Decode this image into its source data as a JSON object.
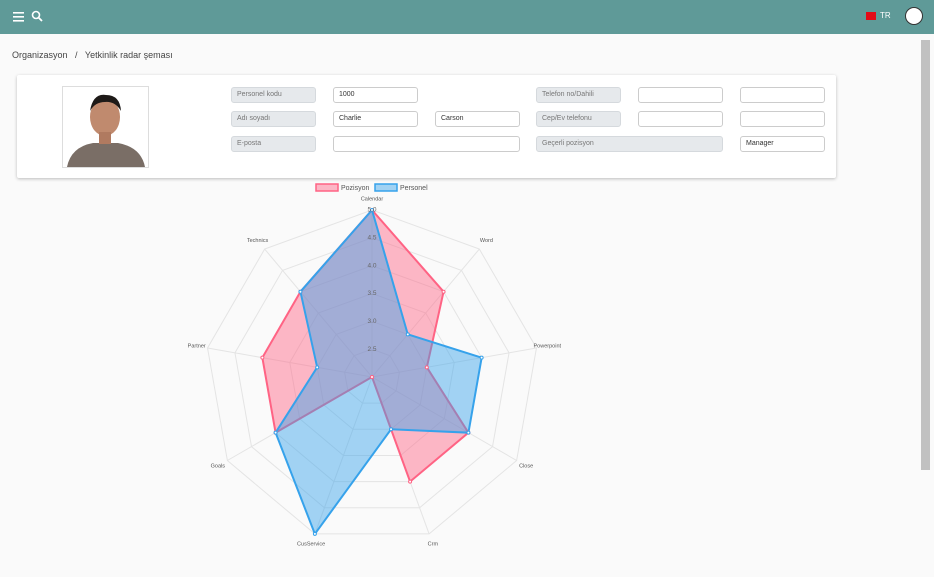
{
  "header": {
    "language": "TR"
  },
  "breadcrumb": {
    "items": [
      "Organizasyon",
      "Yetkinlik radar şeması"
    ]
  },
  "form": {
    "personnel_code": {
      "label": "Personel kodu",
      "value": "1000"
    },
    "full_name": {
      "label": "Adı soyadı",
      "first": "Charlie",
      "last": "Carson"
    },
    "email": {
      "label": "E-posta"
    },
    "phone": {
      "label": "Telefon no/Dahili"
    },
    "mobile": {
      "label": "Cep/Ev telefonu"
    },
    "position": {
      "label": "Geçerli pozisyon",
      "value": "Manager"
    }
  },
  "chart_data": {
    "type": "radar",
    "categories": [
      "Calendar",
      "Word",
      "Powerpoint",
      "Close",
      "Crm",
      "CusService",
      "Goals",
      "Partner",
      "Technics"
    ],
    "series": [
      {
        "name": "Pozisyon",
        "color": "#ff6384",
        "values": [
          5,
          4,
          3,
          4,
          4,
          2,
          4,
          4,
          4
        ]
      },
      {
        "name": "Personel",
        "color": "#36a2eb",
        "values": [
          5,
          3,
          4,
          4,
          3,
          5,
          4,
          3,
          4
        ]
      }
    ],
    "rlim": [
      2,
      5
    ],
    "rticks": [
      2.5,
      {
        "value": 3,
        "label": "3.0"
      },
      3.5,
      {
        "value": 4,
        "label": "4.0"
      },
      4.5,
      {
        "value": 5,
        "label": "5.0"
      }
    ],
    "grid": true,
    "legend": "top"
  }
}
